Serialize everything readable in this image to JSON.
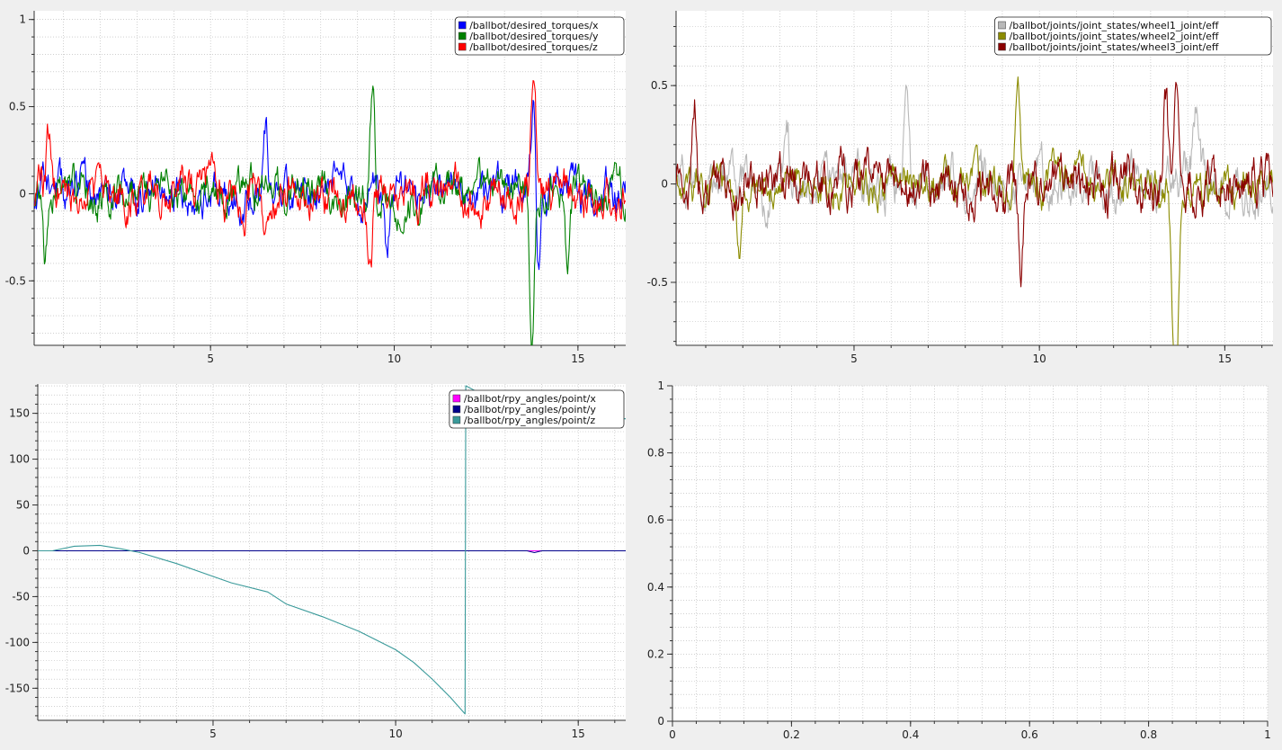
{
  "chart_data": [
    {
      "id": "torques",
      "type": "line",
      "xlim": [
        0.2,
        16.3
      ],
      "ylim": [
        -0.87,
        1.05
      ],
      "x_ticks": [
        5,
        10,
        15
      ],
      "y_ticks": [
        -0.5,
        0,
        0.5,
        1
      ],
      "grid": true,
      "legend_position": "top-right",
      "series": [
        {
          "name": "/ballbot/desired_torques/x",
          "color": "#0000ff",
          "amp": 0.09,
          "seed": 11,
          "spikes": [
            [
              6.5,
              0.4
            ],
            [
              8.4,
              0.22
            ],
            [
              13.8,
              0.5
            ],
            [
              13.9,
              -0.45
            ],
            [
              9.8,
              -0.3
            ]
          ]
        },
        {
          "name": "/ballbot/desired_torques/y",
          "color": "#008000",
          "amp": 0.09,
          "seed": 23,
          "spikes": [
            [
              9.4,
              0.6
            ],
            [
              9.6,
              -0.25
            ],
            [
              13.75,
              -0.8
            ],
            [
              14.7,
              -0.45
            ],
            [
              0.5,
              -0.38
            ]
          ]
        },
        {
          "name": "/ballbot/desired_torques/z",
          "color": "#ff0000",
          "amp": 0.1,
          "seed": 37,
          "spikes": [
            [
              6.5,
              -0.4
            ],
            [
              9.35,
              -0.5
            ],
            [
              13.8,
              0.85
            ],
            [
              0.6,
              0.36
            ]
          ]
        }
      ]
    },
    {
      "id": "wheels",
      "type": "line",
      "xlim": [
        0.2,
        16.3
      ],
      "ylim": [
        -0.82,
        0.88
      ],
      "x_ticks": [
        5,
        10,
        15
      ],
      "y_ticks": [
        -0.5,
        0,
        0.5
      ],
      "grid": true,
      "legend_position": "top-right",
      "series": [
        {
          "name": "/ballbot/joints/joint_states/wheel1_joint/eff",
          "color": "#b8b8b8",
          "amp": 0.1,
          "seed": 5,
          "spikes": [
            [
              6.4,
              0.42
            ],
            [
              14.2,
              0.4
            ],
            [
              3.2,
              0.32
            ]
          ]
        },
        {
          "name": "/ballbot/joints/joint_states/wheel2_joint/eff",
          "color": "#8b8b00",
          "amp": 0.08,
          "seed": 17,
          "spikes": [
            [
              9.4,
              0.6
            ],
            [
              13.7,
              -0.8
            ],
            [
              13.6,
              -0.58
            ],
            [
              1.9,
              -0.3
            ]
          ]
        },
        {
          "name": "/ballbot/joints/joint_states/wheel3_joint/eff",
          "color": "#8b0000",
          "amp": 0.1,
          "seed": 29,
          "spikes": [
            [
              13.7,
              0.7
            ],
            [
              9.5,
              -0.5
            ],
            [
              13.4,
              0.45
            ],
            [
              0.7,
              0.36
            ]
          ]
        }
      ]
    },
    {
      "id": "rpy",
      "type": "line",
      "xlim": [
        0.2,
        16.3
      ],
      "ylim": [
        -185,
        182
      ],
      "x_ticks": [
        5,
        10,
        15
      ],
      "y_ticks": [
        -150,
        -100,
        -50,
        0,
        50,
        100,
        150
      ],
      "grid": true,
      "legend_position": "top-right",
      "series": [
        {
          "name": "/ballbot/rpy_angles/point/x",
          "color": "#ff00ff",
          "points": [
            [
              0.2,
              0
            ],
            [
              16.3,
              0
            ]
          ]
        },
        {
          "name": "/ballbot/rpy_angles/point/y",
          "color": "#00008b",
          "points": [
            [
              0.2,
              0
            ],
            [
              13.6,
              0
            ],
            [
              13.8,
              -2
            ],
            [
              14.0,
              0
            ],
            [
              16.3,
              0
            ]
          ]
        },
        {
          "name": "/ballbot/rpy_angles/point/z",
          "color": "#3a9a9a",
          "points": [
            [
              0.2,
              0
            ],
            [
              0.6,
              0
            ],
            [
              1.2,
              5
            ],
            [
              1.9,
              6
            ],
            [
              2.5,
              2
            ],
            [
              3.0,
              -2
            ],
            [
              4.0,
              -14
            ],
            [
              5.0,
              -28
            ],
            [
              5.5,
              -35
            ],
            [
              6.5,
              -45
            ],
            [
              7.0,
              -58
            ],
            [
              8.0,
              -72
            ],
            [
              9.0,
              -88
            ],
            [
              10.0,
              -108
            ],
            [
              10.5,
              -122
            ],
            [
              11.0,
              -140
            ],
            [
              11.5,
              -160
            ],
            [
              11.9,
              -178
            ],
            [
              11.92,
              180
            ],
            [
              12.3,
              172
            ],
            [
              12.8,
              155
            ],
            [
              13.2,
              148
            ],
            [
              16.3,
              144
            ]
          ]
        }
      ]
    },
    {
      "id": "empty",
      "type": "line",
      "xlim": [
        0,
        1
      ],
      "ylim": [
        0,
        1
      ],
      "x_ticks": [
        0,
        0.2,
        0.4,
        0.6,
        0.8,
        1
      ],
      "y_ticks": [
        0,
        0.2,
        0.4,
        0.6,
        0.8,
        1
      ],
      "grid": true,
      "series": []
    }
  ]
}
